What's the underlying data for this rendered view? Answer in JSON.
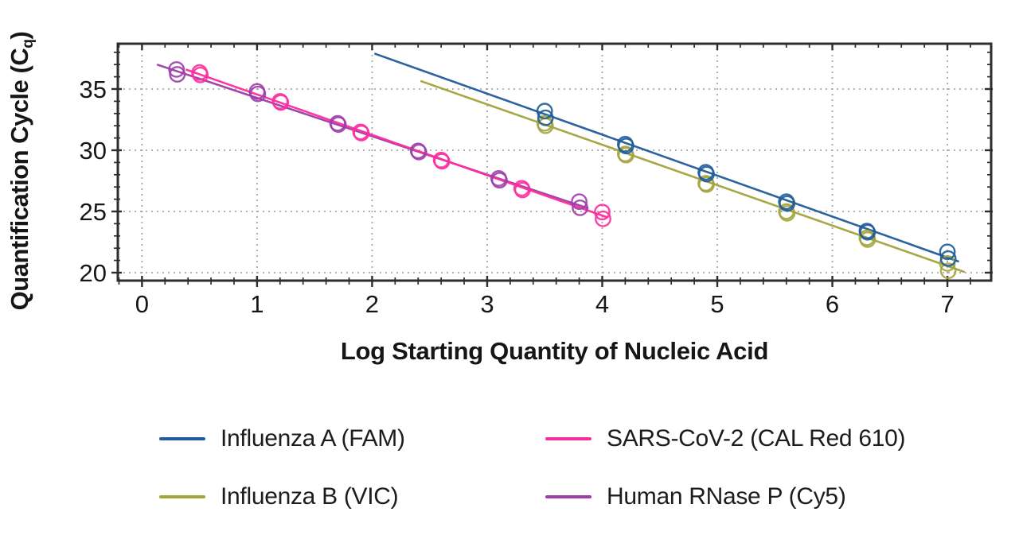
{
  "chart_data": {
    "type": "scatter",
    "title": "",
    "xlabel": "Log Starting Quantity of Nucleic Acid",
    "ylabel": {
      "text": "Quantification Cycle (C",
      "sub": "q",
      "close": ")"
    },
    "xlim": [
      -0.21,
      7.38
    ],
    "ylim": [
      19.35,
      38.7
    ],
    "x_ticks": [
      0,
      1,
      2,
      3,
      4,
      5,
      6,
      7
    ],
    "x_minor_step": 0.2,
    "y_ticks": [
      20,
      25,
      30,
      35
    ],
    "y_minor_step": 1,
    "grid": {
      "x": true,
      "y": true,
      "style": "dotted",
      "color": "#a6a6a6"
    },
    "axis_color": "#2d2d2d",
    "tick_label_color": "#161616",
    "legend_position": "bottom",
    "marker": {
      "shape": "open-circle",
      "radius": 9.2
    },
    "series": [
      {
        "name": "Influenza A (FAM)",
        "color": "#1f5c99",
        "trend_line": {
          "x1": 2.02,
          "y1": 37.9,
          "x2": 7.1,
          "y2": 20.9
        },
        "x": [
          3.5,
          4.2,
          4.9,
          5.6,
          6.3,
          7.0
        ],
        "cq_rep1": [
          33.2,
          30.5,
          28.2,
          25.8,
          23.4,
          21.7
        ],
        "cq_rep2": [
          32.65,
          30.35,
          28.05,
          25.65,
          23.3,
          21.15
        ]
      },
      {
        "name": "Influenza B (VIC)",
        "color": "#a3a43c",
        "trend_line": {
          "x1": 2.42,
          "y1": 35.66,
          "x2": 7.15,
          "y2": 20.05
        },
        "x": [
          3.5,
          4.2,
          4.9,
          5.6,
          6.3,
          7.0
        ],
        "cq_rep1": [
          32.2,
          29.7,
          27.3,
          25.0,
          22.85,
          20.75
        ],
        "cq_rep2": [
          32.0,
          29.6,
          27.2,
          24.85,
          22.7,
          20.15
        ]
      },
      {
        "name": "SARS-CoV-2 (CAL Red 610)",
        "color": "#fc2e9e",
        "trend_line": {
          "x1": 0.38,
          "y1": 36.6,
          "x2": 4.05,
          "y2": 24.5
        },
        "x": [
          0.5,
          1.2,
          1.9,
          2.6,
          3.3,
          4.0
        ],
        "cq_rep1": [
          36.35,
          34.0,
          31.5,
          29.2,
          26.9,
          24.95
        ],
        "cq_rep2": [
          36.15,
          33.9,
          31.4,
          29.1,
          26.75,
          24.4
        ]
      },
      {
        "name": "Human RNase P (Cy5)",
        "color": "#9d3ea8",
        "trend_line": {
          "x1": 0.13,
          "y1": 37.0,
          "x2": 3.88,
          "y2": 25.25
        },
        "x": [
          0.3,
          1.0,
          1.7,
          2.4,
          3.1,
          3.8
        ],
        "cq_rep1": [
          36.6,
          34.8,
          32.2,
          29.95,
          27.7,
          25.8
        ],
        "cq_rep2": [
          36.2,
          34.6,
          32.1,
          29.85,
          27.55,
          25.3
        ]
      }
    ],
    "legend_order": [
      0,
      2,
      1,
      3
    ],
    "draw_order": [
      3,
      2,
      1,
      0
    ]
  }
}
